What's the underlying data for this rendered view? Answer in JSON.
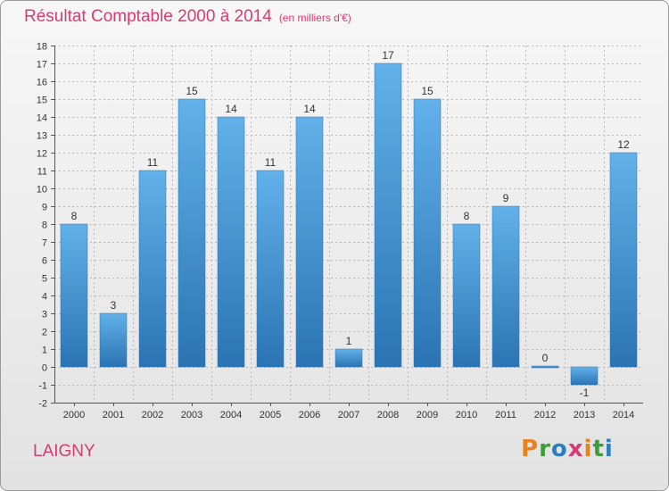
{
  "page": {
    "title": "Résultat Comptable 2000 à 2014",
    "subtitle": "(en milliers d'€)",
    "commune": "LAIGNY",
    "logo": {
      "text": "Proxiti",
      "letters": [
        "P",
        "r",
        "o",
        "x",
        "i",
        "t",
        "i"
      ],
      "colors": [
        "#e8821e",
        "#3e9c3a",
        "#2a7fc4",
        "#d63c72",
        "#e8821e",
        "#3e9c3a",
        "#2a7fc4"
      ]
    }
  },
  "colors": {
    "title": "#d63c72",
    "bar_light": "#62b1ea",
    "bar_dark": "#2a74b3",
    "grid": "#b8b8b8",
    "axis_text": "#333333"
  },
  "chart_data": {
    "type": "bar",
    "title": "Résultat Comptable 2000 à 2014",
    "subtitle": "(en milliers d'€)",
    "xlabel": "",
    "ylabel": "",
    "categories": [
      "2000",
      "2001",
      "2002",
      "2003",
      "2004",
      "2005",
      "2006",
      "2007",
      "2008",
      "2009",
      "2010",
      "2011",
      "2012",
      "2013",
      "2014"
    ],
    "values": [
      8,
      3,
      11,
      15,
      14,
      11,
      14,
      1,
      17,
      15,
      8,
      9,
      0,
      -1,
      12
    ],
    "data_labels": [
      "8",
      "3",
      "11",
      "15",
      "14",
      "11",
      "14",
      "1",
      "17",
      "15",
      "8",
      "9",
      "0",
      "-1",
      "12"
    ],
    "ylim": [
      -2,
      18
    ],
    "yticks": [
      -2,
      -1,
      0,
      1,
      2,
      3,
      4,
      5,
      6,
      7,
      8,
      9,
      10,
      11,
      12,
      13,
      14,
      15,
      16,
      17,
      18
    ],
    "ytick_labels": [
      "-2",
      "-1",
      "0",
      "1",
      "2",
      "3",
      "4",
      "5",
      "6",
      "7",
      "8",
      "9",
      "10",
      "11",
      "12",
      "13",
      "14",
      "15",
      "16",
      "17",
      "18"
    ],
    "grid": true,
    "legend": "none"
  }
}
